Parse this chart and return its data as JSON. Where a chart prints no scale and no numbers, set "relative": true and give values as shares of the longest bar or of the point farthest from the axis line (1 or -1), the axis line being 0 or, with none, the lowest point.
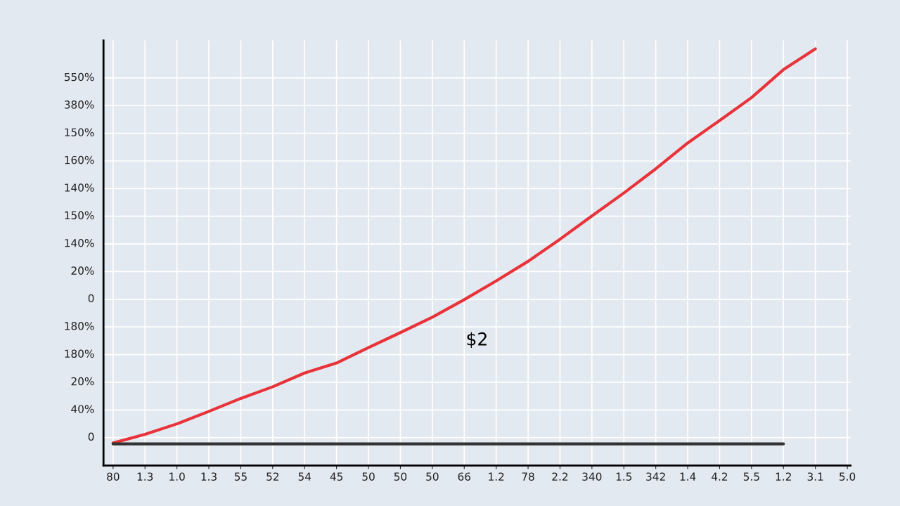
{
  "chart_data": {
    "type": "line",
    "categories": [
      "80",
      "1.3",
      "1.0",
      "1.3",
      "55",
      "52",
      "54",
      "45",
      "50",
      "50",
      "50",
      "66",
      "1.2",
      "78",
      "2.2",
      "340",
      "1.5",
      "342",
      "1.4",
      "4.2",
      "5.5",
      "1.2",
      "3.1",
      "5.0"
    ],
    "relative": true,
    "series": [
      {
        "color": "#e8333a",
        "values": [
          0.054,
          0.075,
          0.1,
          0.13,
          0.161,
          0.189,
          0.222,
          0.246,
          0.283,
          0.319,
          0.356,
          0.398,
          0.443,
          0.49,
          0.543,
          0.599,
          0.654,
          0.712,
          0.774,
          0.828,
          0.883,
          0.95,
          1.0,
          null
        ]
      },
      {
        "color": "#333333",
        "values": [
          0.052,
          0.052,
          0.052,
          0.052,
          0.052,
          0.052,
          0.052,
          0.052,
          0.052,
          0.052,
          0.052,
          0.052,
          0.052,
          0.052,
          0.052,
          0.052,
          0.052,
          0.052,
          0.052,
          0.052,
          0.052,
          0.052,
          null,
          null
        ]
      }
    ],
    "annotations": [
      "550%",
      "380%",
      "150%",
      "160%",
      "140%",
      "150%",
      "140%",
      "20%",
      "0",
      "180%",
      "180%",
      "20%",
      "40%",
      "0",
      "$2"
    ],
    "grid": true,
    "legend": false,
    "marker": "none",
    "line_style": "solid"
  }
}
